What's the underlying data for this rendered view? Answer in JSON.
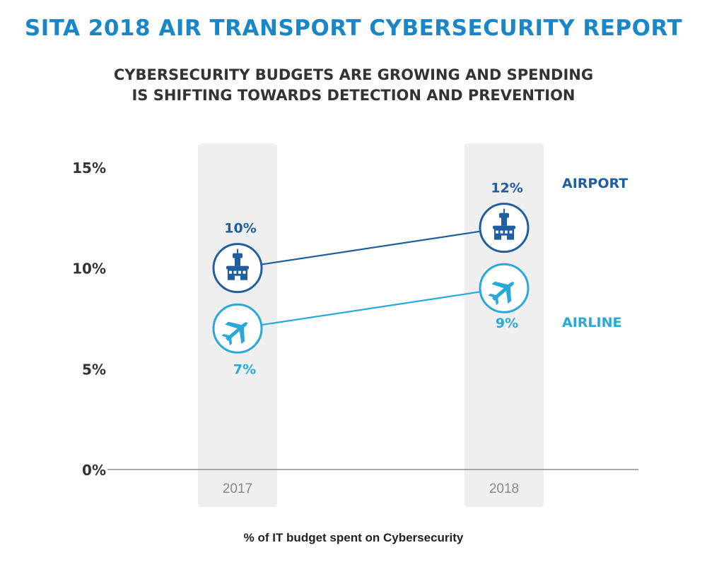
{
  "header": {
    "title": "SITA 2018 AIR TRANSPORT CYBERSECURITY REPORT",
    "subtitle": "CYBERSECURITY BUDGETS ARE GROWING AND SPENDING IS SHIFTING TOWARDS DETECTION AND PREVENTION"
  },
  "caption": "% of IT budget spent on Cybersecurity",
  "colors": {
    "title": "#1a86c8",
    "airport": "#1f5fa0",
    "airline": "#29a9d9",
    "column": "#efefef",
    "axis": "#777777",
    "tick_text": "#333333",
    "year_text": "#8a8a8a"
  },
  "icons": {
    "Airport": "control-tower-icon",
    "Airline": "airplane-icon"
  },
  "chart_data": {
    "type": "line",
    "x": [
      "2017",
      "2018"
    ],
    "ylim": [
      0,
      15
    ],
    "yticks": [
      0,
      5,
      10,
      15
    ],
    "ytick_labels": [
      "0%",
      "5%",
      "10%",
      "15%"
    ],
    "grid": false,
    "legend_placement": "right",
    "series": [
      {
        "name": "AIRPORT",
        "values": [
          10,
          12
        ],
        "labels": [
          "10%",
          "12%"
        ]
      },
      {
        "name": "AIRLINE",
        "values": [
          7,
          9
        ],
        "labels": [
          "7%",
          "9%"
        ]
      }
    ],
    "xlabel": "% of IT budget spent on Cybersecurity"
  }
}
